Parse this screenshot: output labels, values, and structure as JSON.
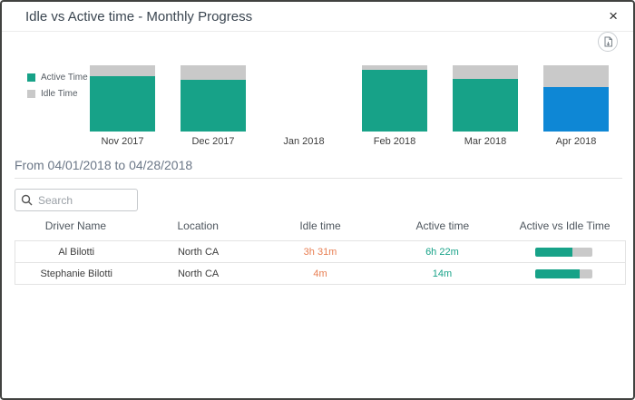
{
  "window": {
    "title": "Idle vs Active time - Monthly Progress",
    "close_glyph": "×"
  },
  "toolbar": {
    "export_icon": "export-image-icon"
  },
  "colors": {
    "active_teal": "#17A288",
    "idle_gray": "#C9C9C9",
    "highlight_blue": "#0E87D5",
    "idle_text_orange": "#E87E52",
    "active_text_teal": "#17A288"
  },
  "chart_data": {
    "type": "bar",
    "stacked": true,
    "categories": [
      "Nov 2017",
      "Dec 2017",
      "Jan 2018",
      "Feb 2018",
      "Mar 2018",
      "Apr 2018"
    ],
    "series": [
      {
        "name": "Active Time",
        "values": [
          83,
          78,
          0,
          93,
          79,
          67
        ]
      },
      {
        "name": "Idle Time",
        "values": [
          17,
          22,
          0,
          7,
          21,
          33
        ]
      }
    ],
    "unit": "percent_of_bar",
    "ylim": [
      0,
      100
    ],
    "grid": false,
    "legend_position": "left",
    "highlighted_category": "Apr 2018",
    "colors": {
      "active": "#17A288",
      "idle": "#C9C9C9",
      "highlighted_active": "#0E87D5"
    }
  },
  "legend": [
    {
      "label": "Active Time",
      "color": "#17A288"
    },
    {
      "label": "Idle Time",
      "color": "#C9C9C9"
    }
  ],
  "filter": {
    "range_label": "From 04/01/2018 to 04/28/2018"
  },
  "search": {
    "placeholder": "Search",
    "value": ""
  },
  "table": {
    "columns": [
      "Driver Name",
      "Location",
      "Idle time",
      "Active time",
      "Active vs Idle Time"
    ],
    "rows": [
      {
        "driver": "Al Bilotti",
        "location": "North CA",
        "idle": "3h 31m",
        "active": "6h 22m",
        "active_pct": 64
      },
      {
        "driver": "Stephanie Bilotti",
        "location": "North CA",
        "idle": "4m",
        "active": "14m",
        "active_pct": 77
      }
    ]
  }
}
